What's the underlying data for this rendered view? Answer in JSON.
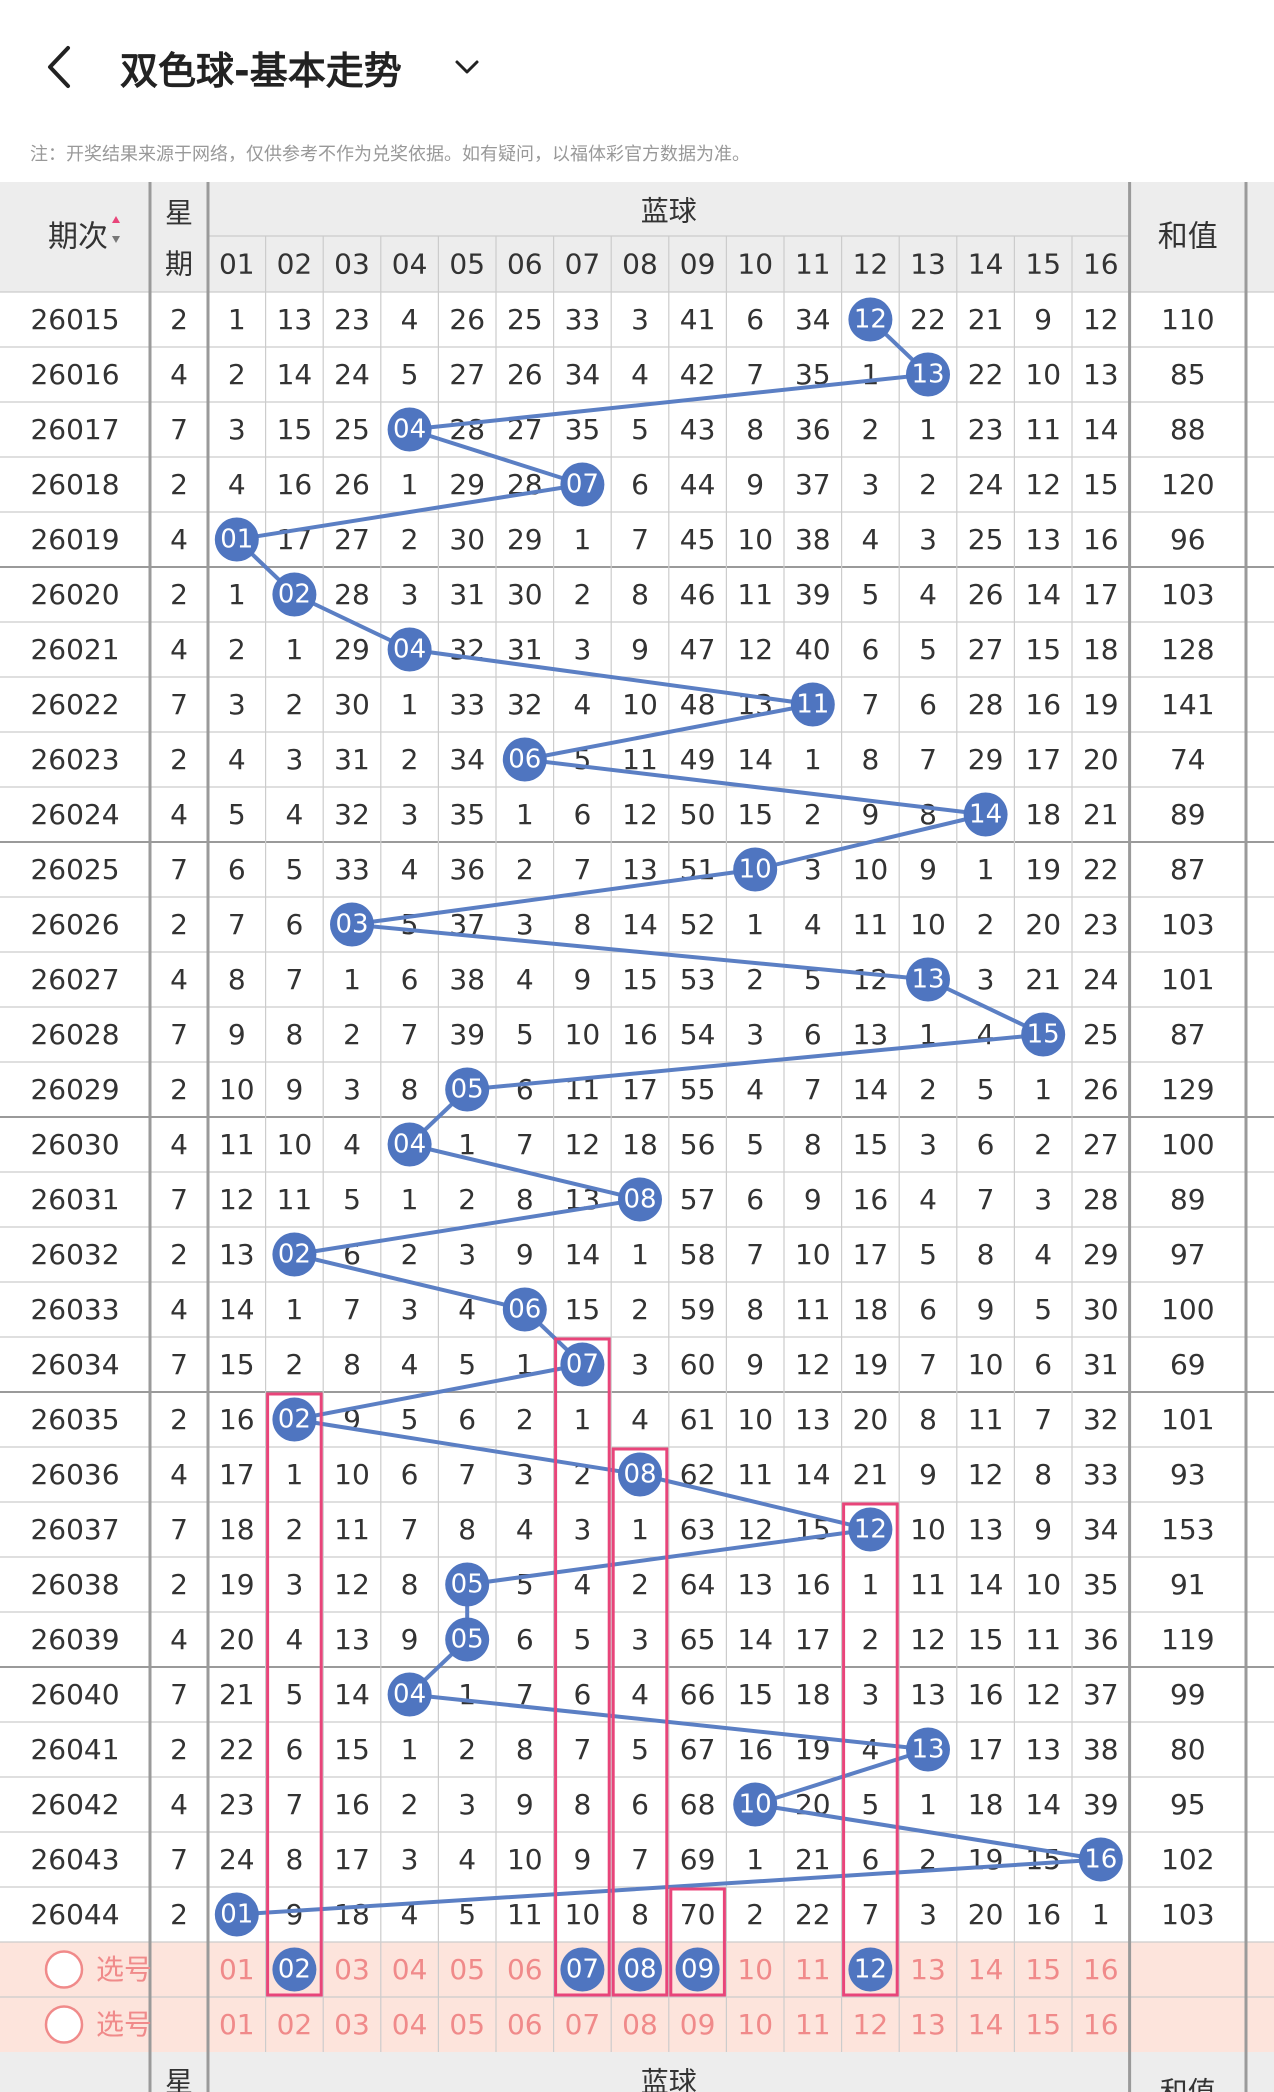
{
  "header": {
    "title": "双色球-基本走势",
    "back_icon": "chevron-left-icon",
    "dropdown_icon": "chevron-down-icon"
  },
  "note": "注：开奖结果来源于网络，仅供参考不作为兑奖依据。如有疑问，以福体彩官方数据为准。",
  "table": {
    "col_issue": "期次",
    "sort_icon": "sort-updown-icon",
    "col_week": "星期",
    "col_blue_group": "蓝球",
    "col_sum": "和值",
    "blue_numbers": [
      "01",
      "02",
      "03",
      "04",
      "05",
      "06",
      "07",
      "08",
      "09",
      "10",
      "11",
      "12",
      "13",
      "14",
      "15",
      "16"
    ],
    "rows": [
      {
        "issue": "26015",
        "week": "2",
        "blue": 12,
        "cells": [
          "1",
          "13",
          "23",
          "4",
          "26",
          "25",
          "33",
          "3",
          "41",
          "6",
          "34",
          "12",
          "22",
          "21",
          "9",
          "12"
        ],
        "sum": "110"
      },
      {
        "issue": "26016",
        "week": "4",
        "blue": 13,
        "cells": [
          "2",
          "14",
          "24",
          "5",
          "27",
          "26",
          "34",
          "4",
          "42",
          "7",
          "35",
          "1",
          "13",
          "22",
          "10",
          "13"
        ],
        "sum": "85"
      },
      {
        "issue": "26017",
        "week": "7",
        "blue": 4,
        "cells": [
          "3",
          "15",
          "25",
          "04",
          "28",
          "27",
          "35",
          "5",
          "43",
          "8",
          "36",
          "2",
          "1",
          "23",
          "11",
          "14"
        ],
        "sum": "88"
      },
      {
        "issue": "26018",
        "week": "2",
        "blue": 7,
        "cells": [
          "4",
          "16",
          "26",
          "1",
          "29",
          "28",
          "07",
          "6",
          "44",
          "9",
          "37",
          "3",
          "2",
          "24",
          "12",
          "15"
        ],
        "sum": "120"
      },
      {
        "issue": "26019",
        "week": "4",
        "blue": 1,
        "cells": [
          "01",
          "17",
          "27",
          "2",
          "30",
          "29",
          "1",
          "7",
          "45",
          "10",
          "38",
          "4",
          "3",
          "25",
          "13",
          "16"
        ],
        "sum": "96"
      },
      {
        "issue": "26020",
        "week": "2",
        "blue": 2,
        "cells": [
          "1",
          "02",
          "28",
          "3",
          "31",
          "30",
          "2",
          "8",
          "46",
          "11",
          "39",
          "5",
          "4",
          "26",
          "14",
          "17"
        ],
        "sum": "103"
      },
      {
        "issue": "26021",
        "week": "4",
        "blue": 4,
        "cells": [
          "2",
          "1",
          "29",
          "04",
          "32",
          "31",
          "3",
          "9",
          "47",
          "12",
          "40",
          "6",
          "5",
          "27",
          "15",
          "18"
        ],
        "sum": "128"
      },
      {
        "issue": "26022",
        "week": "7",
        "blue": 11,
        "cells": [
          "3",
          "2",
          "30",
          "1",
          "33",
          "32",
          "4",
          "10",
          "48",
          "13",
          "11",
          "7",
          "6",
          "28",
          "16",
          "19"
        ],
        "sum": "141"
      },
      {
        "issue": "26023",
        "week": "2",
        "blue": 6,
        "cells": [
          "4",
          "3",
          "31",
          "2",
          "34",
          "06",
          "5",
          "11",
          "49",
          "14",
          "1",
          "8",
          "7",
          "29",
          "17",
          "20"
        ],
        "sum": "74"
      },
      {
        "issue": "26024",
        "week": "4",
        "blue": 14,
        "cells": [
          "5",
          "4",
          "32",
          "3",
          "35",
          "1",
          "6",
          "12",
          "50",
          "15",
          "2",
          "9",
          "8",
          "14",
          "18",
          "21"
        ],
        "sum": "89"
      },
      {
        "issue": "26025",
        "week": "7",
        "blue": 10,
        "cells": [
          "6",
          "5",
          "33",
          "4",
          "36",
          "2",
          "7",
          "13",
          "51",
          "10",
          "3",
          "10",
          "9",
          "1",
          "19",
          "22"
        ],
        "sum": "87"
      },
      {
        "issue": "26026",
        "week": "2",
        "blue": 3,
        "cells": [
          "7",
          "6",
          "03",
          "5",
          "37",
          "3",
          "8",
          "14",
          "52",
          "1",
          "4",
          "11",
          "10",
          "2",
          "20",
          "23"
        ],
        "sum": "103"
      },
      {
        "issue": "26027",
        "week": "4",
        "blue": 13,
        "cells": [
          "8",
          "7",
          "1",
          "6",
          "38",
          "4",
          "9",
          "15",
          "53",
          "2",
          "5",
          "12",
          "13",
          "3",
          "21",
          "24"
        ],
        "sum": "101"
      },
      {
        "issue": "26028",
        "week": "7",
        "blue": 15,
        "cells": [
          "9",
          "8",
          "2",
          "7",
          "39",
          "5",
          "10",
          "16",
          "54",
          "3",
          "6",
          "13",
          "1",
          "4",
          "15",
          "25"
        ],
        "sum": "87"
      },
      {
        "issue": "26029",
        "week": "2",
        "blue": 5,
        "cells": [
          "10",
          "9",
          "3",
          "8",
          "05",
          "6",
          "11",
          "17",
          "55",
          "4",
          "7",
          "14",
          "2",
          "5",
          "1",
          "26"
        ],
        "sum": "129"
      },
      {
        "issue": "26030",
        "week": "4",
        "blue": 4,
        "cells": [
          "11",
          "10",
          "4",
          "04",
          "1",
          "7",
          "12",
          "18",
          "56",
          "5",
          "8",
          "15",
          "3",
          "6",
          "2",
          "27"
        ],
        "sum": "100"
      },
      {
        "issue": "26031",
        "week": "7",
        "blue": 8,
        "cells": [
          "12",
          "11",
          "5",
          "1",
          "2",
          "8",
          "13",
          "08",
          "57",
          "6",
          "9",
          "16",
          "4",
          "7",
          "3",
          "28"
        ],
        "sum": "89"
      },
      {
        "issue": "26032",
        "week": "2",
        "blue": 2,
        "cells": [
          "13",
          "02",
          "6",
          "2",
          "3",
          "9",
          "14",
          "1",
          "58",
          "7",
          "10",
          "17",
          "5",
          "8",
          "4",
          "29"
        ],
        "sum": "97"
      },
      {
        "issue": "26033",
        "week": "4",
        "blue": 6,
        "cells": [
          "14",
          "1",
          "7",
          "3",
          "4",
          "06",
          "15",
          "2",
          "59",
          "8",
          "11",
          "18",
          "6",
          "9",
          "5",
          "30"
        ],
        "sum": "100"
      },
      {
        "issue": "26034",
        "week": "7",
        "blue": 7,
        "cells": [
          "15",
          "2",
          "8",
          "4",
          "5",
          "1",
          "07",
          "3",
          "60",
          "9",
          "12",
          "19",
          "7",
          "10",
          "6",
          "31"
        ],
        "sum": "69"
      },
      {
        "issue": "26035",
        "week": "2",
        "blue": 2,
        "cells": [
          "16",
          "02",
          "9",
          "5",
          "6",
          "2",
          "1",
          "4",
          "61",
          "10",
          "13",
          "20",
          "8",
          "11",
          "7",
          "32"
        ],
        "sum": "101"
      },
      {
        "issue": "26036",
        "week": "4",
        "blue": 8,
        "cells": [
          "17",
          "1",
          "10",
          "6",
          "7",
          "3",
          "2",
          "08",
          "62",
          "11",
          "14",
          "21",
          "9",
          "12",
          "8",
          "33"
        ],
        "sum": "93"
      },
      {
        "issue": "26037",
        "week": "7",
        "blue": 12,
        "cells": [
          "18",
          "2",
          "11",
          "7",
          "8",
          "4",
          "3",
          "1",
          "63",
          "12",
          "15",
          "12",
          "10",
          "13",
          "9",
          "34"
        ],
        "sum": "153"
      },
      {
        "issue": "26038",
        "week": "2",
        "blue": 5,
        "cells": [
          "19",
          "3",
          "12",
          "8",
          "05",
          "5",
          "4",
          "2",
          "64",
          "13",
          "16",
          "1",
          "11",
          "14",
          "10",
          "35"
        ],
        "sum": "91"
      },
      {
        "issue": "26039",
        "week": "4",
        "blue": 5,
        "cells": [
          "20",
          "4",
          "13",
          "9",
          "05",
          "6",
          "5",
          "3",
          "65",
          "14",
          "17",
          "2",
          "12",
          "15",
          "11",
          "36"
        ],
        "sum": "119"
      },
      {
        "issue": "26040",
        "week": "7",
        "blue": 4,
        "cells": [
          "21",
          "5",
          "14",
          "04",
          "1",
          "7",
          "6",
          "4",
          "66",
          "15",
          "18",
          "3",
          "13",
          "16",
          "12",
          "37"
        ],
        "sum": "99"
      },
      {
        "issue": "26041",
        "week": "2",
        "blue": 13,
        "cells": [
          "22",
          "6",
          "15",
          "1",
          "2",
          "8",
          "7",
          "5",
          "67",
          "16",
          "19",
          "4",
          "13",
          "17",
          "13",
          "38"
        ],
        "sum": "80"
      },
      {
        "issue": "26042",
        "week": "4",
        "blue": 10,
        "cells": [
          "23",
          "7",
          "16",
          "2",
          "3",
          "9",
          "8",
          "6",
          "68",
          "10",
          "20",
          "5",
          "1",
          "18",
          "14",
          "39"
        ],
        "sum": "95"
      },
      {
        "issue": "26043",
        "week": "7",
        "blue": 16,
        "cells": [
          "24",
          "8",
          "17",
          "3",
          "4",
          "10",
          "9",
          "7",
          "69",
          "1",
          "21",
          "6",
          "2",
          "19",
          "15",
          "16"
        ],
        "sum": "102"
      },
      {
        "issue": "26044",
        "week": "2",
        "blue": 1,
        "cells": [
          "01",
          "9",
          "18",
          "4",
          "5",
          "11",
          "10",
          "8",
          "70",
          "2",
          "22",
          "7",
          "3",
          "20",
          "16",
          "1"
        ],
        "sum": "103"
      }
    ],
    "select_rows": [
      {
        "label": "选号",
        "radio_icon": "radio-empty-icon",
        "selected": [
          2,
          7,
          8,
          9,
          12
        ]
      },
      {
        "label": "选号",
        "radio_icon": "radio-empty-icon",
        "selected": []
      }
    ],
    "footer": {
      "col_week": "星",
      "col_blue_group": "蓝球",
      "col_sum": "和值"
    },
    "highlight_columns": [
      2,
      7,
      8,
      9,
      12
    ]
  },
  "colors": {
    "ball": "#4f75c0",
    "line": "#5b7fc4",
    "highlight_border": "#e8457a",
    "select_bg": "#fde4dc",
    "select_text": "#f08a8a",
    "header_bg": "#ededed",
    "grid": "#cccccc",
    "group_line": "#9a9a9a"
  }
}
